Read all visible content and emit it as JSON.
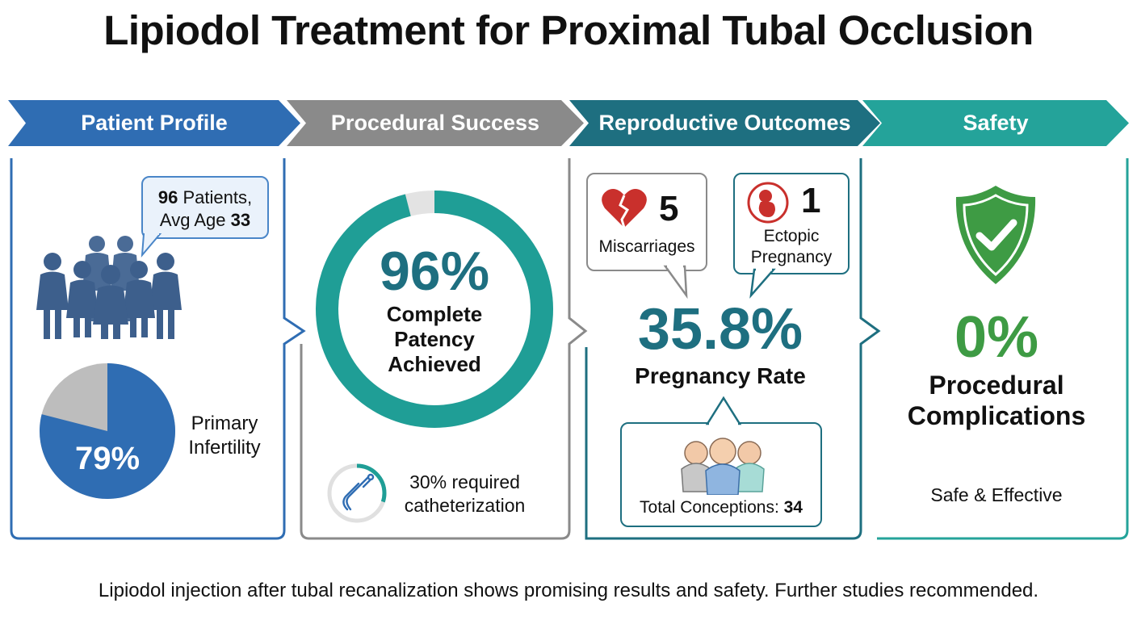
{
  "title": "Lipiodol Treatment for Proximal Tubal Occlusion",
  "stages": [
    {
      "label": "Patient Profile",
      "color": "#2f6db3"
    },
    {
      "label": "Procedural Success",
      "color": "#8a8a8a"
    },
    {
      "label": "Reproductive Outcomes",
      "color": "#1e6f80"
    },
    {
      "label": "Safety",
      "color": "#24a39a"
    }
  ],
  "patient": {
    "count": "96",
    "count_text": " Patients,",
    "age_text": "Avg Age ",
    "age": "33",
    "primary_infertility_pct": "79%",
    "primary_infertility_value": 79,
    "primary_infertility_label": "Primary Infertility"
  },
  "procedural": {
    "patency_pct": "96%",
    "patency_value": 96,
    "patency_label_1": "Complete",
    "patency_label_2": "Patency",
    "patency_label_3": "Achieved",
    "catheter_value": 30,
    "catheter_line_1": "30% required",
    "catheter_line_2": "catheterization"
  },
  "reproductive": {
    "miscarriages_count": "5",
    "miscarriages_label": "Miscarriages",
    "ectopic_count": "1",
    "ectopic_label_1": "Ectopic",
    "ectopic_label_2": "Pregnancy",
    "pregnancy_rate": "35.8%",
    "pregnancy_label": "Pregnancy Rate",
    "conceptions_label": "Total Conceptions: ",
    "conceptions_value": "34"
  },
  "safety": {
    "complication_pct": "0%",
    "label_1": "Procedural",
    "label_2": "Complications",
    "tagline": "Safe & Effective"
  },
  "footer": "Lipiodol injection after tubal recanalization shows promising results and safety. Further studies recommended.",
  "icons": [
    "people-group-icon",
    "broken-heart-icon",
    "fetus-icon",
    "catheter-icon",
    "babies-icon",
    "shield-check-icon"
  ]
}
